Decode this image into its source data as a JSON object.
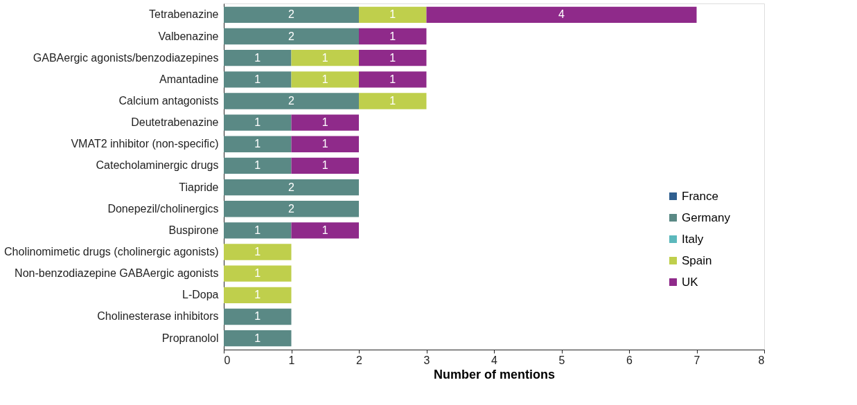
{
  "chart_data": {
    "type": "bar",
    "orientation": "horizontal",
    "stacked": true,
    "xlabel": "Number of mentions",
    "categories": [
      "Tetrabenazine",
      "Valbenazine",
      "GABAergic agonists/benzodiazepines",
      "Amantadine",
      "Calcium antagonists",
      "Deutetrabenazine",
      "VMAT2 inhibitor (non-specific)",
      "Catecholaminergic drugs",
      "Tiapride",
      "Donepezil/cholinergics",
      "Buspirone",
      "Cholinomimetic drugs (cholinergic agonists)",
      "Non-benzodiazepine GABAergic agonists",
      "L-Dopa",
      "Cholinesterase inhibitors",
      "Propranolol"
    ],
    "series": [
      {
        "name": "France",
        "color": "#2f5f8f",
        "values": [
          null,
          null,
          null,
          null,
          null,
          null,
          null,
          null,
          null,
          null,
          null,
          null,
          null,
          null,
          null,
          null
        ]
      },
      {
        "name": "Germany",
        "color": "#5a8985",
        "values": [
          2,
          2,
          1,
          1,
          2,
          1,
          1,
          1,
          2,
          2,
          1,
          null,
          null,
          null,
          1,
          1
        ]
      },
      {
        "name": "Italy",
        "color": "#5cb8bc",
        "values": [
          null,
          null,
          null,
          null,
          null,
          null,
          null,
          null,
          null,
          null,
          null,
          null,
          null,
          null,
          null,
          null
        ]
      },
      {
        "name": "Spain",
        "color": "#bfcf4c",
        "values": [
          1,
          null,
          1,
          1,
          1,
          null,
          null,
          null,
          null,
          null,
          null,
          1,
          1,
          1,
          null,
          null
        ]
      },
      {
        "name": "UK",
        "color": "#8f2a8a",
        "values": [
          4,
          1,
          1,
          1,
          null,
          1,
          1,
          1,
          null,
          null,
          1,
          null,
          null,
          null,
          null,
          null
        ]
      }
    ],
    "xlim": [
      0,
      8
    ],
    "xticks": [
      0,
      1,
      2,
      3,
      4,
      5,
      6,
      7,
      8
    ],
    "grid": false,
    "legend": "right",
    "data_labels": true
  }
}
